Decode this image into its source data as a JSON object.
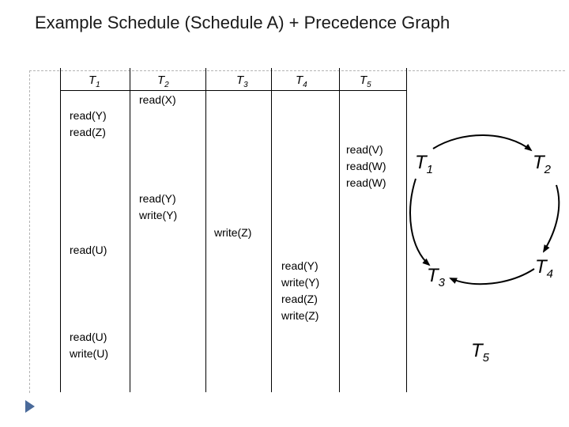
{
  "title": "Example Schedule (Schedule A) + Precedence Graph",
  "schedule": {
    "headers": [
      {
        "letter": "T",
        "sub": "1"
      },
      {
        "letter": "T",
        "sub": "2"
      },
      {
        "letter": "T",
        "sub": "3"
      },
      {
        "letter": "T",
        "sub": "4"
      },
      {
        "letter": "T",
        "sub": "5"
      }
    ],
    "ops": {
      "t2_read_x": "read(X)",
      "t1_read_y_z": "read(Y)\nread(Z)",
      "t5_ops": "read(V)\nread(W)\nread(W)",
      "t2_ops": "read(Y)\nwrite(Y)",
      "t3_write_z": "write(Z)",
      "t1_read_u": "read(U)",
      "t4_ops": "read(Y)\nwrite(Y)\nread(Z)\nwrite(Z)",
      "t1_ops_end": "read(U)\nwrite(U)"
    }
  },
  "graph": {
    "nodes": [
      {
        "letter": "T",
        "sub": "1"
      },
      {
        "letter": "T",
        "sub": "2"
      },
      {
        "letter": "T",
        "sub": "3"
      },
      {
        "letter": "T",
        "sub": "4"
      },
      {
        "letter": "T",
        "sub": "5"
      }
    ],
    "edges": [
      {
        "from": "T1",
        "to": "T2"
      },
      {
        "from": "T2",
        "to": "T4"
      },
      {
        "from": "T4",
        "to": "T3"
      },
      {
        "from": "T1",
        "to": "T3"
      }
    ],
    "edge_color": "#000000"
  },
  "bullet_color": "#4a6a9a"
}
